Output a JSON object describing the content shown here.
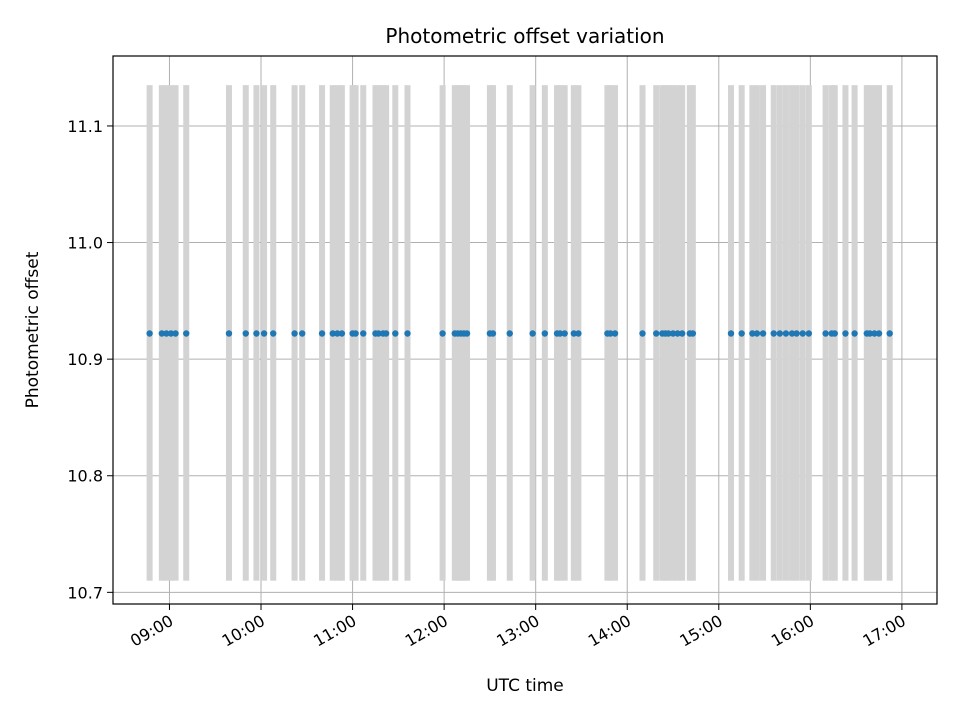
{
  "chart_data": {
    "type": "scatter",
    "title": "Photometric offset variation",
    "xlabel": "UTC time",
    "ylabel": "Photometric offset",
    "grid": true,
    "xlim": [
      "08:23",
      "17:23"
    ],
    "ylim": [
      10.69,
      11.16
    ],
    "x_ticks": [
      "09:00",
      "10:00",
      "11:00",
      "12:00",
      "13:00",
      "14:00",
      "15:00",
      "16:00",
      "17:00"
    ],
    "y_ticks": [
      10.7,
      10.8,
      10.9,
      11.0,
      11.1
    ],
    "y_tick_labels": [
      "10.7",
      "10.8",
      "10.9",
      "11.0",
      "11.1"
    ],
    "band_range": [
      10.71,
      11.135
    ],
    "colors": {
      "points": "#1f77b4",
      "bands": "#d3d3d3",
      "grid": "#b0b0b0"
    },
    "series": [
      {
        "x": [
          "08:47",
          "08:55",
          "08:58",
          "09:01",
          "09:04",
          "09:11",
          "09:39",
          "09:50",
          "09:57",
          "10:02",
          "10:08",
          "10:22",
          "10:27",
          "10:40",
          "10:47",
          "10:50",
          "10:53",
          "11:00",
          "11:02",
          "11:07",
          "11:15",
          "11:17",
          "11:20",
          "11:22",
          "11:28",
          "11:36",
          "11:59",
          "12:07",
          "12:09",
          "12:11",
          "12:13",
          "12:15",
          "12:30",
          "12:32",
          "12:43",
          "12:58",
          "13:06",
          "13:14",
          "13:16",
          "13:19",
          "13:25",
          "13:28",
          "13:47",
          "13:49",
          "13:52",
          "14:10",
          "14:19",
          "14:23",
          "14:25",
          "14:27",
          "14:30",
          "14:33",
          "14:36",
          "14:41",
          "14:43",
          "15:08",
          "15:15",
          "15:22",
          "15:25",
          "15:29",
          "15:36",
          "15:40",
          "15:44",
          "15:48",
          "15:51",
          "15:55",
          "15:59"
        ],
        "y": [
          10.922,
          10.922,
          10.922,
          10.922,
          10.922,
          10.922,
          10.922,
          10.922,
          10.922,
          10.922,
          10.922,
          10.922,
          10.922,
          10.922,
          10.922,
          10.922,
          10.922,
          10.922,
          10.922,
          10.922,
          10.922,
          10.922,
          10.922,
          10.922,
          10.922,
          10.922,
          10.922,
          10.922,
          10.922,
          10.922,
          10.922,
          10.922,
          10.922,
          10.922,
          10.922,
          10.922,
          10.922,
          10.922,
          10.922,
          10.922,
          10.922,
          10.922,
          10.922,
          10.922,
          10.922,
          10.922,
          10.922,
          10.922,
          10.922,
          10.922,
          10.922,
          10.922,
          10.922,
          10.922,
          10.922,
          10.922,
          10.922,
          10.922,
          10.922,
          10.922,
          10.922,
          10.922,
          10.922,
          10.922,
          10.922,
          10.922,
          10.922
        ]
      },
      {
        "x": [
          "16:10",
          "16:14",
          "16:16",
          "16:23",
          "16:29",
          "16:37",
          "16:39",
          "16:42",
          "16:45",
          "16:52"
        ],
        "y": [
          10.922,
          10.922,
          10.922,
          10.922,
          10.922,
          10.922,
          10.922,
          10.922,
          10.922,
          10.922
        ]
      }
    ]
  }
}
